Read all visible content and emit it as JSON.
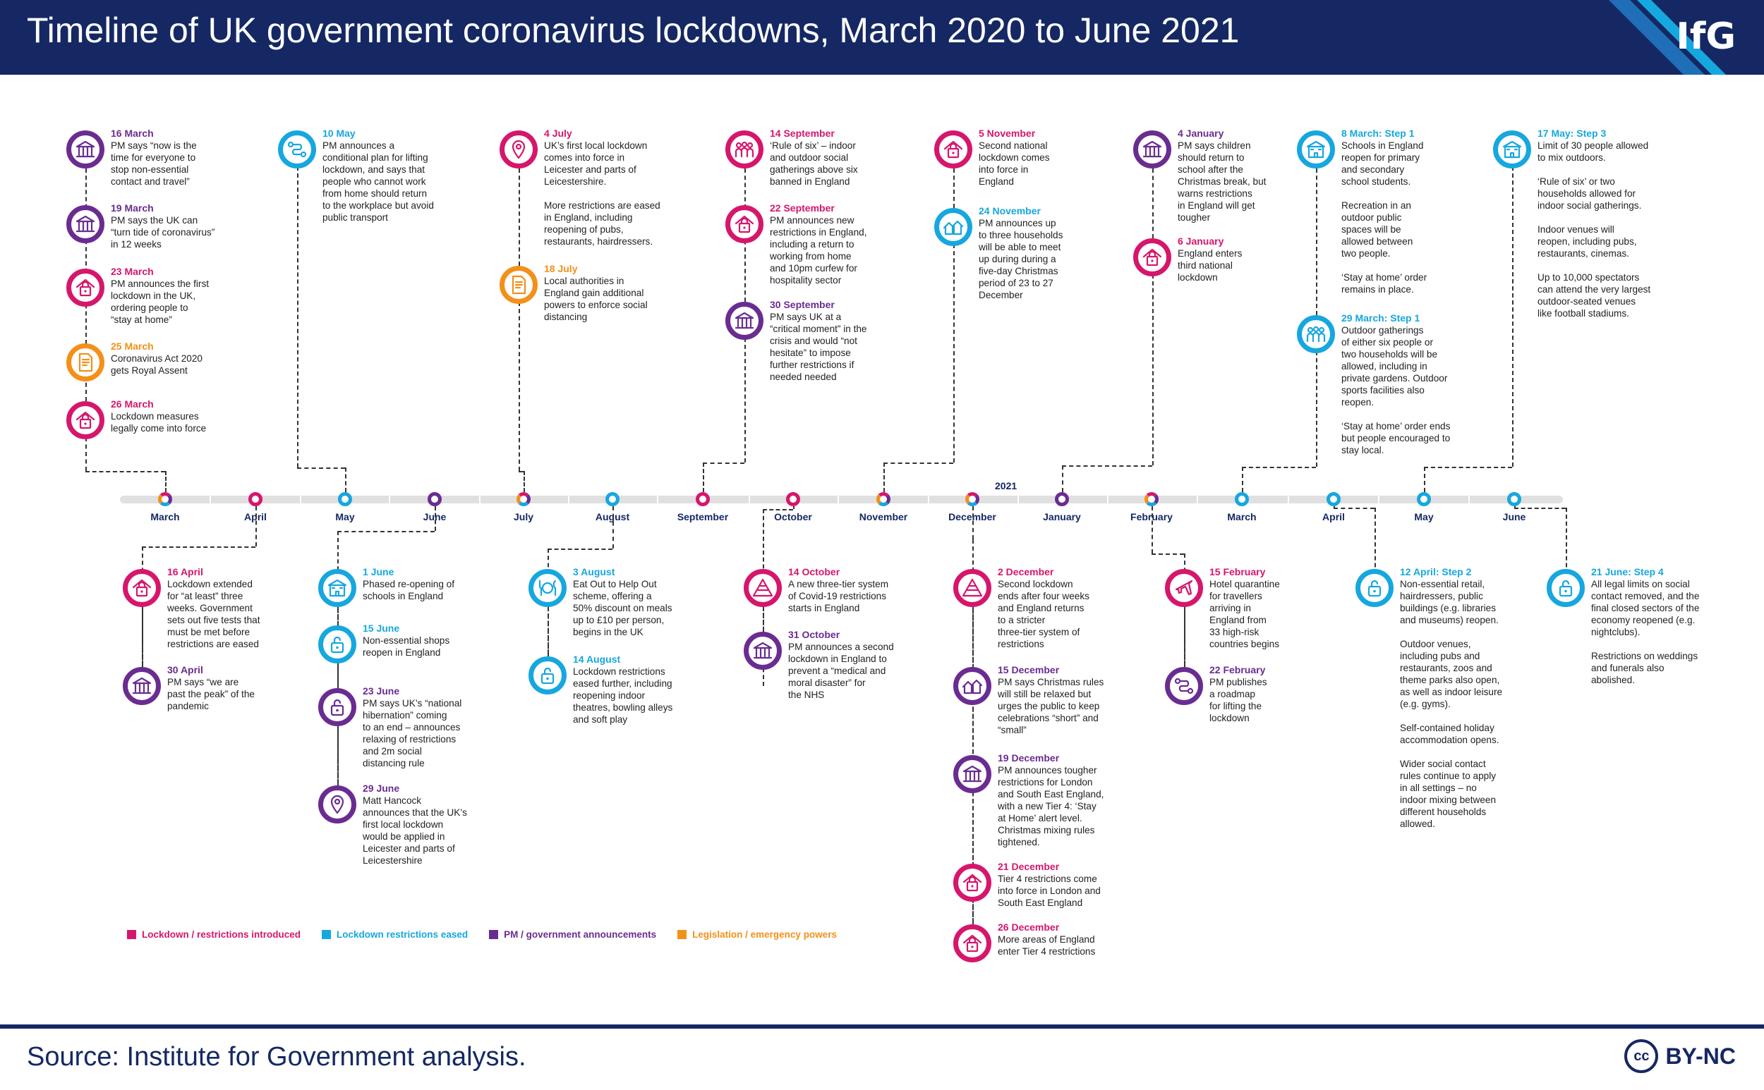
{
  "title": "Timeline of UK government coronavirus lockdowns, March 2020 to June 2021",
  "logo": "IfG",
  "source": "Source: Institute for Government analysis.",
  "license": "BY-NC",
  "license_icon": "cc",
  "year_label": "2021",
  "colors": {
    "lockdown": "#D6166C",
    "eased": "#16A7DF",
    "pm": "#6A2C91",
    "legislation": "#F39019",
    "header": "#152864"
  },
  "legend": [
    {
      "label": "Lockdown / restrictions introduced",
      "category": "lockdown"
    },
    {
      "label": "Lockdown restrictions eased",
      "category": "eased"
    },
    {
      "label": "PM / government announcements",
      "category": "pm"
    },
    {
      "label": "Legislation / emergency powers",
      "category": "legislation"
    }
  ],
  "months": [
    {
      "label": "March",
      "ring": "mixed"
    },
    {
      "label": "April",
      "ring": "lockdown"
    },
    {
      "label": "May",
      "ring": "eased"
    },
    {
      "label": "June",
      "ring": "pm"
    },
    {
      "label": "July",
      "ring": "mixed"
    },
    {
      "label": "August",
      "ring": "eased"
    },
    {
      "label": "September",
      "ring": "lockdown"
    },
    {
      "label": "October",
      "ring": "lockdown"
    },
    {
      "label": "November",
      "ring": "mixed"
    },
    {
      "label": "December",
      "ring": "mixed"
    },
    {
      "label": "January",
      "ring": "pm"
    },
    {
      "label": "February",
      "ring": "mixed"
    },
    {
      "label": "March",
      "ring": "eased"
    },
    {
      "label": "April",
      "ring": "eased"
    },
    {
      "label": "May",
      "ring": "eased"
    },
    {
      "label": "June",
      "ring": "eased"
    }
  ],
  "events": [
    {
      "date": "16 March",
      "cat": "pm",
      "icon": "government",
      "text": "PM says “now is the\ntime for everyone to\nstop non-essential\ncontact and travel”"
    },
    {
      "date": "19 March",
      "cat": "pm",
      "icon": "government",
      "text": "PM says the UK can\n“turn tide of coronavirus”\nin 12 weeks"
    },
    {
      "date": "23 March",
      "cat": "lockdown",
      "icon": "lock-house",
      "text": "PM announces the first\nlockdown in the UK,\nordering people to\n“stay at home”"
    },
    {
      "date": "25 March",
      "cat": "legislation",
      "icon": "document",
      "text": "Coronavirus Act 2020\ngets Royal Assent"
    },
    {
      "date": "26 March",
      "cat": "lockdown",
      "icon": "lock-house",
      "text": "Lockdown measures\nlegally come into force"
    },
    {
      "date": "10 May",
      "cat": "eased",
      "icon": "route",
      "text": "PM announces a\nconditional plan for lifting\nlockdown, and says that\npeople who cannot work\nfrom home should return\nto the workplace but avoid\npublic transport"
    },
    {
      "date": "4 July",
      "cat": "lockdown",
      "icon": "location",
      "text": "UK’s first local lockdown\ncomes into force in\nLeicester and parts of\nLeicestershire.\n\nMore restrictions are eased\nin England, including\nreopening of pubs,\nrestaurants, hairdressers."
    },
    {
      "date": "18 July",
      "cat": "legislation",
      "icon": "document",
      "text": "Local authorities in\nEngland gain additional\npowers to enforce social\ndistancing"
    },
    {
      "date": "14 September",
      "cat": "lockdown",
      "icon": "people",
      "text": "‘Rule of six’ – indoor\nand outdoor social\ngatherings above six\nbanned in England"
    },
    {
      "date": "22 September",
      "cat": "lockdown",
      "icon": "lock-house",
      "text": "PM announces new\nrestrictions in England,\nincluding a return to\nworking from home\nand 10pm curfew for\nhospitality sector"
    },
    {
      "date": "30 September",
      "cat": "pm",
      "icon": "government",
      "text": "PM says UK at a\n“critical moment” in the\ncrisis and would “not\nhesitate” to impose\nfurther restrictions if\nneeded needed"
    },
    {
      "date": "5 November",
      "cat": "lockdown",
      "icon": "lock-house",
      "text": "Second national\nlockdown comes\ninto force in\nEngland"
    },
    {
      "date": "24 November",
      "cat": "eased",
      "icon": "houses",
      "text": "PM announces up\nto three households\nwill be able to meet\nup during during a\nfive-day Christmas\nperiod of 23 to 27\nDecember"
    },
    {
      "date": "4 January",
      "cat": "pm",
      "icon": "government",
      "text": "PM says children\nshould return to\nschool after the\nChristmas break, but\nwarns restrictions\nin England will get\ntougher"
    },
    {
      "date": "6 January",
      "cat": "lockdown",
      "icon": "lock-house",
      "text": "England enters\nthird national\nlockdown"
    },
    {
      "date": "8 March: Step 1",
      "cat": "eased",
      "icon": "school",
      "text": "Schools in England\nreopen for primary\nand secondary\nschool students.\n\nRecreation in an\noutdoor public\nspaces will be\nallowed between\ntwo people.\n\n‘Stay at home’ order\nremains in place."
    },
    {
      "date": "29 March: Step 1",
      "cat": "eased",
      "icon": "people",
      "text": "Outdoor gatherings\nof either six people or\ntwo households will be\nallowed, including in\nprivate gardens. Outdoor\nsports facilities also\nreopen.\n\n‘Stay at home’ order ends\nbut people encouraged to\nstay local."
    },
    {
      "date": "17 May: Step 3",
      "cat": "eased",
      "icon": "school",
      "text": "Limit of 30 people allowed\nto mix outdoors.\n\n‘Rule of six’ or two\nhouseholds allowed for\nindoor social gatherings.\n\nIndoor venues will\nreopen, including pubs,\nrestaurants, cinemas.\n\nUp to 10,000 spectators\ncan attend the very largest\noutdoor-seated venues\nlike football stadiums."
    },
    {
      "date": "16 April",
      "cat": "lockdown",
      "icon": "lock-house",
      "text": "Lockdown extended\nfor “at least” three\nweeks. Government\nsets out five tests that\nmust be met before\nrestrictions are eased"
    },
    {
      "date": "30 April",
      "cat": "pm",
      "icon": "government",
      "text": "PM says “we are\npast the peak” of the\npandemic"
    },
    {
      "date": "1 June",
      "cat": "eased",
      "icon": "school",
      "text": "Phased re-opening of\nschools in England"
    },
    {
      "date": "15 June",
      "cat": "eased",
      "icon": "unlock",
      "text": "Non-essential shops\nreopen in England"
    },
    {
      "date": "23 June",
      "cat": "pm",
      "icon": "unlock",
      "text": "PM says UK’s “national\nhibernation” coming\nto an end – announces\nrelaxing of restrictions\nand 2m social\ndistancing rule"
    },
    {
      "date": "29 June",
      "cat": "pm",
      "icon": "location",
      "text": "Matt Hancock\nannounces that the UK’s\nfirst local lockdown\nwould be applied in\nLeicester and parts of\nLeicestershire"
    },
    {
      "date": "3 August",
      "cat": "eased",
      "icon": "dining",
      "text": "Eat Out to Help Out\nscheme, offering a\n50% discount on meals\nup to £10 per person,\nbegins in the UK"
    },
    {
      "date": "14 August",
      "cat": "eased",
      "icon": "unlock",
      "text": "Lockdown restrictions\neased further, including\nreopening indoor\ntheatres, bowling alleys\nand soft play"
    },
    {
      "date": "14 October",
      "cat": "lockdown",
      "icon": "tiers",
      "text": "A new three-tier system\nof Covid-19 restrictions\nstarts in England"
    },
    {
      "date": "31 October",
      "cat": "pm",
      "icon": "government",
      "text": "PM announces a second\nlockdown in England to\nprevent a “medical and\nmoral disaster” for\nthe NHS"
    },
    {
      "date": "2 December",
      "cat": "lockdown",
      "icon": "tiers",
      "text": "Second lockdown\nends after four weeks\nand England returns\nto a stricter\nthree-tier system of\nrestrictions"
    },
    {
      "date": "15 December",
      "cat": "pm",
      "icon": "houses",
      "text": "PM says Christmas rules\nwill still be relaxed but\nurges the public to keep\ncelebrations “short” and\n“small”"
    },
    {
      "date": "19 December",
      "cat": "pm",
      "icon": "government",
      "text": "PM announces tougher\nrestrictions for London\nand South East England,\nwith a new Tier 4: ‘Stay\nat Home’ alert level.\nChristmas mixing rules\ntightened."
    },
    {
      "date": "21 December",
      "cat": "lockdown",
      "icon": "lock-house",
      "text": "Tier 4 restrictions come\ninto force in London and\nSouth East England"
    },
    {
      "date": "26 December",
      "cat": "lockdown",
      "icon": "lock-house",
      "text": "More areas of England\nenter Tier 4 restrictions"
    },
    {
      "date": "15 February",
      "cat": "lockdown",
      "icon": "plane",
      "text": "Hotel quarantine\nfor travellers\narriving in\nEngland from\n33 high-risk\ncountries begins"
    },
    {
      "date": "22 February",
      "cat": "pm",
      "icon": "route",
      "text": "PM publishes\na roadmap\nfor lifting the\nlockdown"
    },
    {
      "date": "12 April: Step 2",
      "cat": "eased",
      "icon": "unlock",
      "text": "Non-essential retail,\nhairdressers, public\nbuildings (e.g. libraries\nand museums) reopen.\n\nOutdoor venues,\nincluding pubs and\nrestaurants, zoos and\ntheme parks also open,\nas well as indoor leisure\n(e.g. gyms).\n\nSelf-contained holiday\naccommodation opens.\n\nWider social contact\nrules continue to apply\nin all settings – no\nindoor mixing between\ndifferent households\nallowed."
    },
    {
      "date": "21 June: Step 4",
      "cat": "eased",
      "icon": "unlock",
      "text": "All legal limits on social\ncontact removed, and the\nfinal closed sectors of the\neconomy reopened (e.g.\nnightclubs).\n\nRestrictions on weddings\nand funerals also\nabolished."
    }
  ]
}
